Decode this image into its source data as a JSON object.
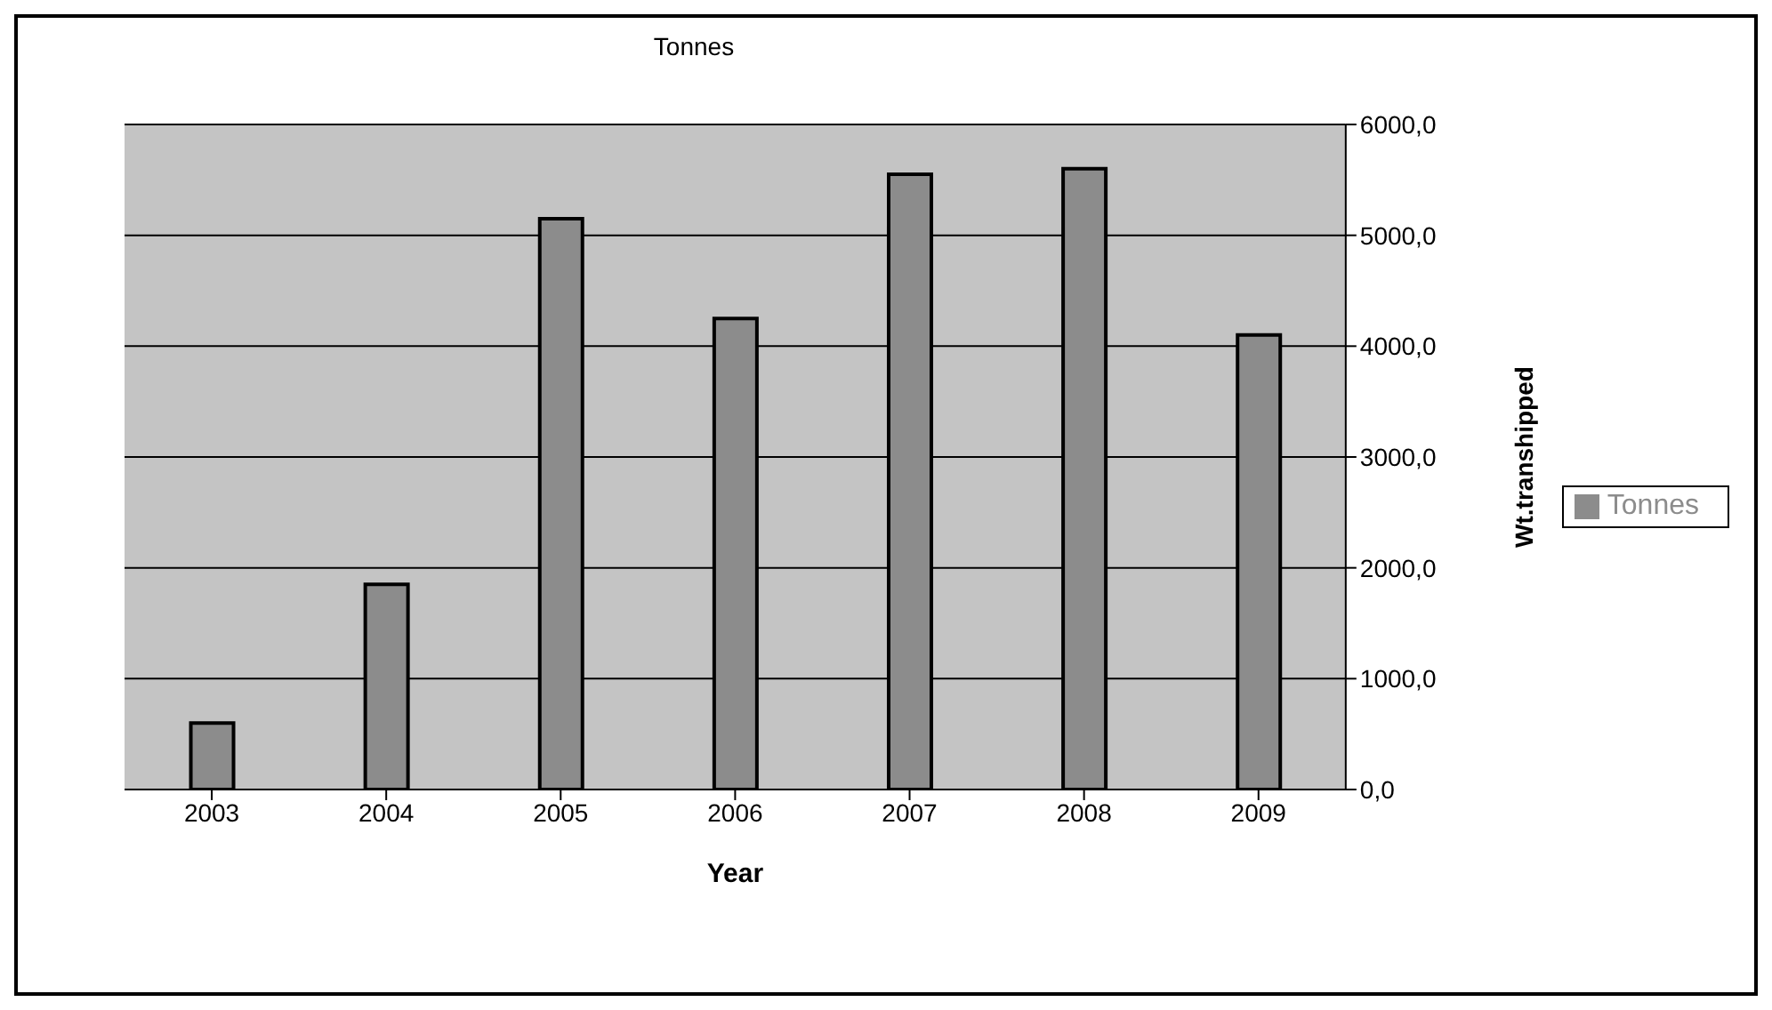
{
  "chart_data": {
    "type": "bar",
    "title": "Tonnes",
    "xlabel": "Year",
    "ylabel": "Wt.transhipped",
    "categories": [
      "2003",
      "2004",
      "2005",
      "2006",
      "2007",
      "2008",
      "2009"
    ],
    "series": [
      {
        "name": "Tonnes",
        "color": "#8c8c8c",
        "values": [
          600,
          1850,
          5150,
          4250,
          5550,
          5600,
          4100
        ]
      }
    ],
    "ylim": [
      0,
      6000
    ],
    "yticks": [
      {
        "value": 0,
        "label": "0,0"
      },
      {
        "value": 1000,
        "label": "1000,0"
      },
      {
        "value": 2000,
        "label": "2000,0"
      },
      {
        "value": 3000,
        "label": "3000,0"
      },
      {
        "value": 4000,
        "label": "4000,0"
      },
      {
        "value": 5000,
        "label": "5000,0"
      },
      {
        "value": 6000,
        "label": "6000,0"
      }
    ],
    "grid": "y",
    "legend": "right"
  }
}
